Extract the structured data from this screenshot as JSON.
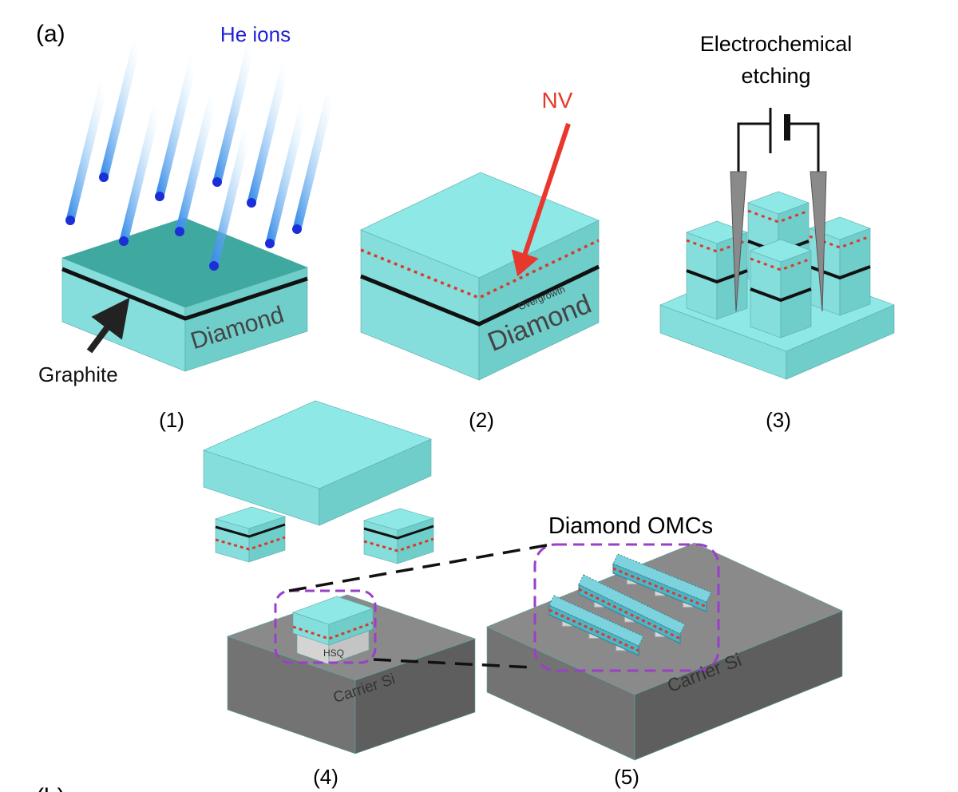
{
  "figure_label": "(a)",
  "next_label": "(b)",
  "step1": {
    "caption": "(1)",
    "ions": "He ions",
    "graphite": "Graphite",
    "substrate": "Diamond"
  },
  "step2": {
    "caption": "(2)",
    "defect": "NV",
    "layer": "Overgrowth",
    "substrate": "Diamond"
  },
  "step3": {
    "caption": "(3)",
    "process": [
      "Electrochemical",
      "etching"
    ]
  },
  "step4": {
    "caption": "(4)",
    "mask": "HSQ",
    "carrier": "Carrier Si"
  },
  "step5": {
    "caption": "(5)",
    "devices": "Diamond OMCs",
    "carrier": "Carrier Si"
  }
}
